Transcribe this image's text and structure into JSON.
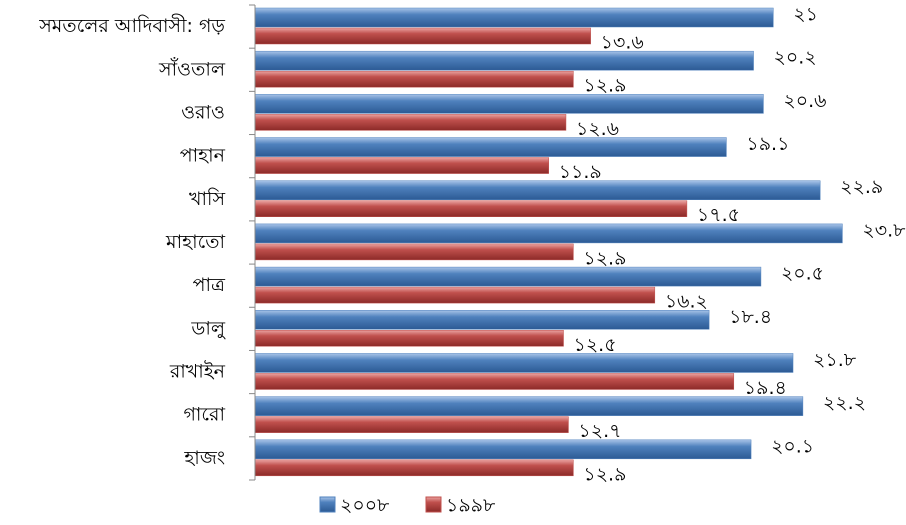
{
  "chart_data": {
    "type": "bar",
    "orientation": "horizontal",
    "categories": [
      "সমতলের আদিবাসী: গড়",
      "সাঁওতাল",
      "ওরাও",
      "পাহান",
      "খাসি",
      "মাহাতো",
      "পাত্র",
      "ডালু",
      "রাখাইন",
      "গারো",
      "হাজং"
    ],
    "series": [
      {
        "name": "২০০৮",
        "color": "#4f81bd",
        "values": [
          21,
          20.2,
          20.6,
          19.1,
          22.9,
          23.8,
          20.5,
          18.4,
          21.8,
          22.2,
          20.1
        ],
        "value_labels": [
          "২১",
          "২০.২",
          "২০.৬",
          "১৯.১",
          "২২.৯",
          "২৩.৮",
          "২০.৫",
          "১৮.৪",
          "২১.৮",
          "২২.২",
          "২০.১"
        ]
      },
      {
        "name": "১৯৯৮",
        "color": "#c0504d",
        "values": [
          13.6,
          12.9,
          12.6,
          11.9,
          17.5,
          12.9,
          16.2,
          12.5,
          19.4,
          12.7,
          12.9
        ],
        "value_labels": [
          "১৩.৬",
          "১২.৯",
          "১২.৬",
          "১১.৯",
          "১৭.৫",
          "১২.৯",
          "১৬.২",
          "১২.৫",
          "১৯.৪",
          "১২.৭",
          "১২.৯"
        ]
      }
    ],
    "xlim": [
      0,
      25
    ],
    "legend": "bottom"
  }
}
